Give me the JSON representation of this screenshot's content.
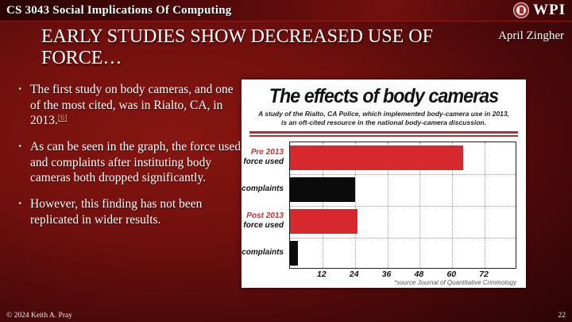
{
  "header": {
    "course_title": "CS 3043 Social Implications Of Computing",
    "logo_text": "WPI"
  },
  "slide": {
    "title_line1": "EARLY STUDIES SHOW DECREASED USE OF",
    "title_line2": "FORCE…",
    "author": "April Zingher",
    "bullets": [
      {
        "text": "The first study on body cameras, and one of the most cited, was in Rialto, CA, in 2013.",
        "citation": "[6]"
      },
      {
        "text": "As can be seen in the graph, the force used and complaints after instituting body cameras both dropped significantly."
      },
      {
        "text": "However, this finding has not been replicated in wider results."
      }
    ]
  },
  "chart_data": {
    "type": "bar",
    "orientation": "horizontal",
    "title": "The effects of body cameras",
    "subtitle": "A study of the Rialto, CA Police, which implemented body-camera use in 2013, is an oft-cited resource in the national body-camera discussion.",
    "source_note": "*source Journal of Quantitative Criminology",
    "xlim": [
      0,
      84
    ],
    "x_ticks": [
      12,
      24,
      36,
      48,
      60,
      72
    ],
    "grid": "dotted",
    "legend": "none",
    "colors": {
      "red": "#d7282e",
      "black": "#0b0b0b"
    },
    "rows": [
      {
        "label_lines": [
          {
            "text": "Pre 2013",
            "color": "#d7282e"
          },
          {
            "text": "force used",
            "color": "#111111"
          }
        ],
        "value": 64,
        "bar_color": "#d7282e"
      },
      {
        "label_lines": [
          {
            "text": "complaints",
            "color": "#111111"
          }
        ],
        "value": 24,
        "bar_color": "#0b0b0b"
      },
      {
        "label_lines": [
          {
            "text": "Post 2013",
            "color": "#d7282e"
          },
          {
            "text": "force used",
            "color": "#111111"
          }
        ],
        "value": 25,
        "bar_color": "#d7282e"
      },
      {
        "label_lines": [
          {
            "text": "complaints",
            "color": "#111111"
          }
        ],
        "value": 3,
        "bar_color": "#0b0b0b"
      }
    ]
  },
  "footer": {
    "copyright": "© 2024 Keith A. Pray",
    "page_number": "22"
  }
}
